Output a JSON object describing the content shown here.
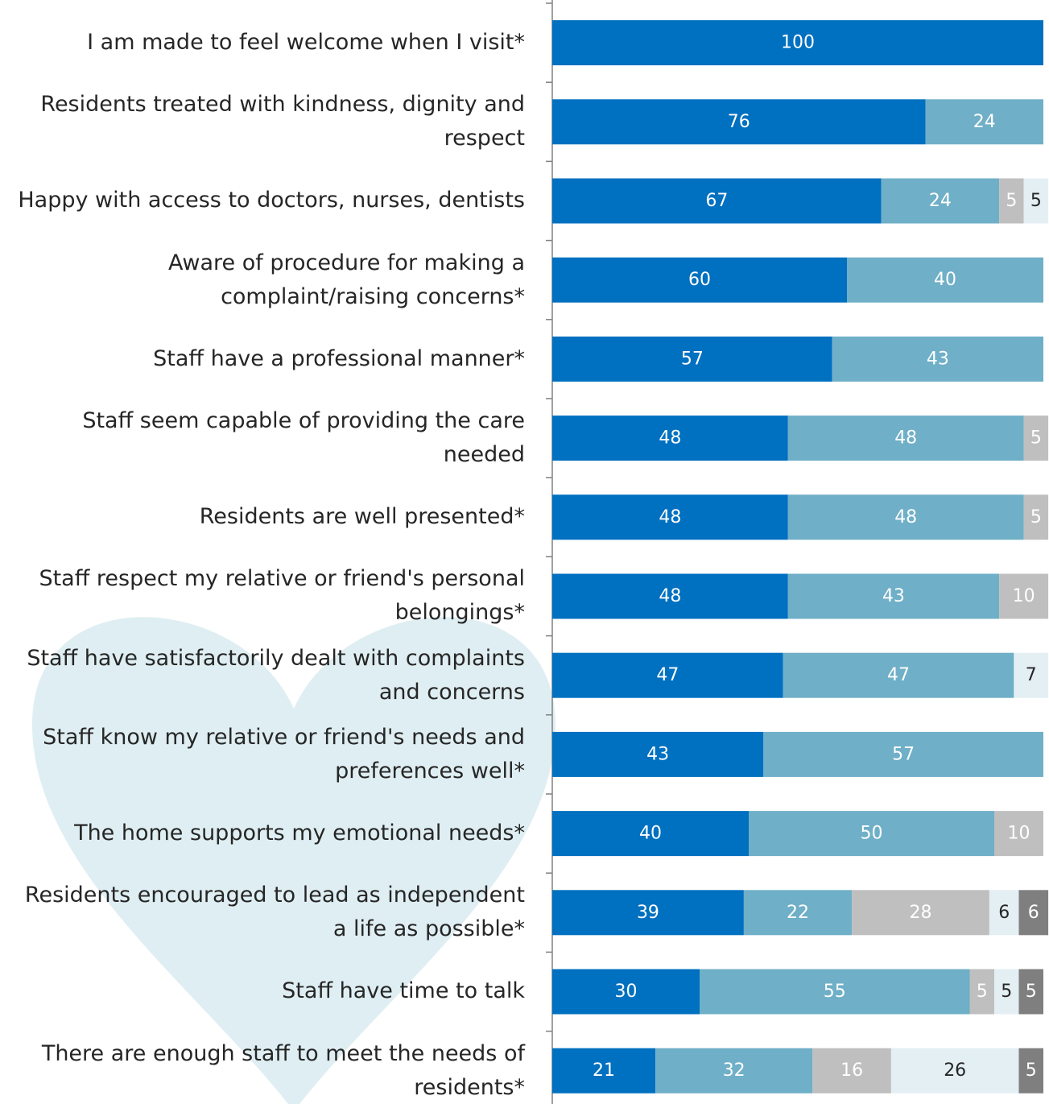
{
  "chart_data": {
    "type": "stacked-bar-horizontal",
    "categories": [
      "I am made to feel welcome when I visit*",
      "Residents treated with kindness, dignity and respect",
      "Happy with access to doctors, nurses, dentists",
      "Aware of procedure for making a complaint/raising concerns*",
      "Staff have a professional manner*",
      "Staff seem capable of providing the care needed",
      "Residents are well presented*",
      "Staff respect my relative or friend's personal belongings*",
      "Staff have satisfactorily dealt with complaints and concerns",
      "Staff know my relative or friend's needs and preferences well*",
      "The home supports my emotional needs*",
      "Residents encouraged to lead as independent a life as possible*",
      "Staff have time to talk",
      "There are enough staff to meet the needs of residents*"
    ],
    "series": [
      {
        "color": "#0070c0",
        "values": [
          100,
          76,
          67,
          60,
          57,
          48,
          48,
          48,
          47,
          43,
          40,
          39,
          30,
          21
        ]
      },
      {
        "color": "#6fafc7",
        "values": [
          null,
          24,
          24,
          40,
          43,
          48,
          48,
          43,
          47,
          57,
          50,
          22,
          55,
          32
        ]
      },
      {
        "color": "#bfbfbf",
        "values": [
          null,
          null,
          5,
          null,
          null,
          5,
          5,
          10,
          null,
          null,
          10,
          28,
          5,
          16
        ]
      },
      {
        "color": "#e4eff4",
        "values": [
          null,
          null,
          5,
          null,
          null,
          null,
          null,
          null,
          7,
          null,
          null,
          6,
          5,
          26
        ]
      },
      {
        "color": "#7f7f7f",
        "values": [
          null,
          null,
          null,
          null,
          null,
          null,
          null,
          null,
          null,
          null,
          null,
          6,
          5,
          5
        ]
      }
    ],
    "xlim": [
      0,
      100
    ]
  }
}
